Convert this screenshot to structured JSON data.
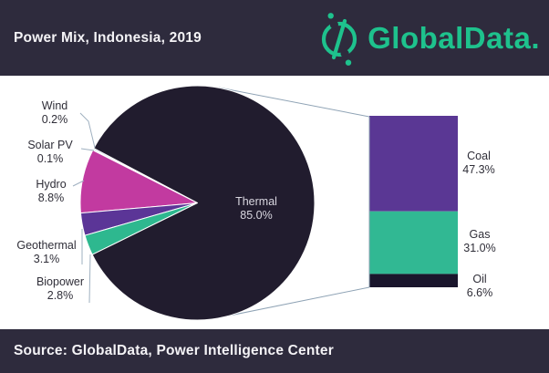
{
  "header": {
    "title": "Power Mix, Indonesia, 2019",
    "brand": "GlobalData."
  },
  "footer": {
    "source": "Source: GlobalData, Power Intelligence Center"
  },
  "colors": {
    "brand_green": "#1ec28d",
    "header_bg": "#2e2b3d",
    "leader_line": "#9fb0c0",
    "label_text": "#2f2e38"
  },
  "chart_data": {
    "type": "pie",
    "title": "Power Mix, Indonesia, 2019",
    "unit": "%",
    "legend_position": "labels-around-pie",
    "slices": [
      {
        "label": "Wind",
        "value": 0.2,
        "value_text": "0.2%",
        "color": "#a9cede"
      },
      {
        "label": "Solar PV",
        "value": 0.1,
        "value_text": "0.1%",
        "color": "#c7dde8"
      },
      {
        "label": "Hydro",
        "value": 8.8,
        "value_text": "8.8%",
        "color": "#c23aa0"
      },
      {
        "label": "Geothermal",
        "value": 3.1,
        "value_text": "3.1%",
        "color": "#5b3597"
      },
      {
        "label": "Biopower",
        "value": 2.8,
        "value_text": "2.8%",
        "color": "#2eb88f"
      },
      {
        "label": "Thermal",
        "value": 85.0,
        "value_text": "85.0%",
        "color": "#211c2e"
      }
    ],
    "thermal_breakdown": {
      "type": "stacked_bar",
      "segments": [
        {
          "label": "Coal",
          "value": 47.3,
          "value_text": "47.3%",
          "color": "#5a3794"
        },
        {
          "label": "Gas",
          "value": 31.0,
          "value_text": "31.0%",
          "color": "#31b893"
        },
        {
          "label": "Oil",
          "value": 6.6,
          "value_text": "6.6%",
          "color": "#1a152c"
        }
      ]
    }
  }
}
